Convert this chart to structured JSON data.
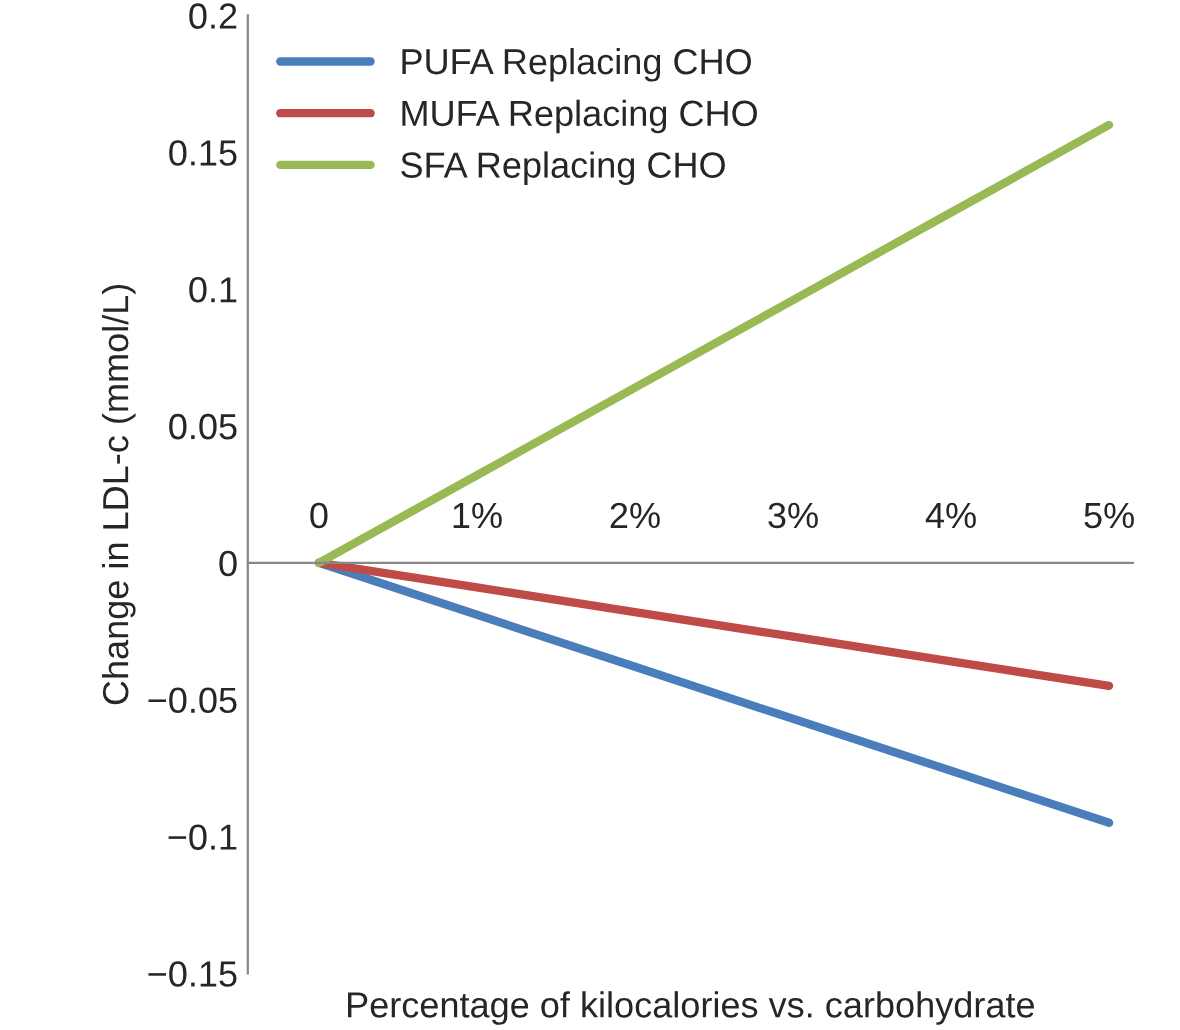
{
  "chart_data": {
    "type": "line",
    "xlabel": "Percentage of kilocalories vs. carbohydrate",
    "ylabel": "Change in LDL-c (mmol/L)",
    "categories": [
      "0",
      "1%",
      "2%",
      "3%",
      "4%",
      "5%"
    ],
    "series": [
      {
        "name": "PUFA Replacing CHO",
        "color": "#4a7ebb",
        "values": [
          0,
          -0.019,
          -0.038,
          -0.057,
          -0.076,
          -0.095
        ]
      },
      {
        "name": "MUFA Replacing CHO",
        "color": "#be4b48",
        "values": [
          0,
          -0.009,
          -0.018,
          -0.027,
          -0.036,
          -0.045
        ]
      },
      {
        "name": "SFA Replacing CHO",
        "color": "#98b954",
        "values": [
          0,
          0.032,
          0.064,
          0.096,
          0.128,
          0.16
        ]
      }
    ],
    "ylim": [
      -0.15,
      0.2
    ],
    "yticks": [
      {
        "value": -0.15,
        "label": "−0.15"
      },
      {
        "value": -0.1,
        "label": "−0.1"
      },
      {
        "value": -0.05,
        "label": "−0.05"
      },
      0,
      0.05,
      0.1,
      0.15,
      0.2
    ],
    "grid": false,
    "legend": "top left",
    "marker": "none",
    "line_style": "solid"
  }
}
